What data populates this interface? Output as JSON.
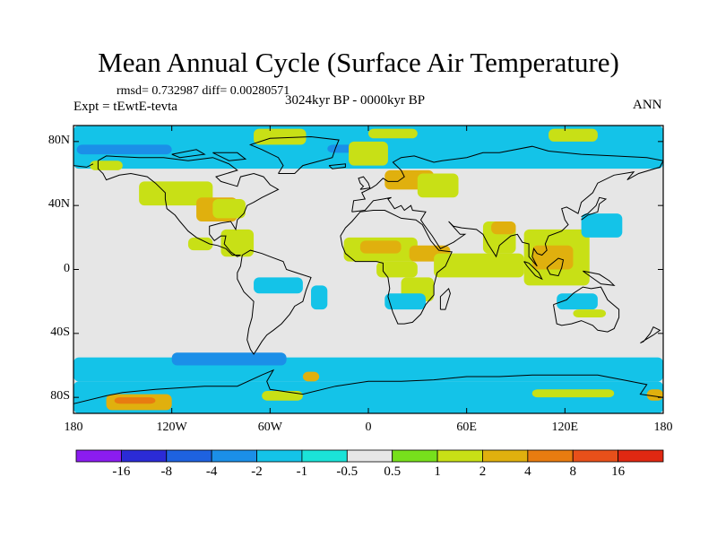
{
  "figure": {
    "title": "Mean Annual Cycle (Surface Air Temperature)",
    "stats": "rmsd= 0.732987 diff= 0.00280571",
    "experiment": "Expt = tEwtE-tevta",
    "period": "3024kyr BP - 0000kyr BP",
    "season": "ANN"
  },
  "axes": {
    "lat_ticks": [
      "80N",
      "40N",
      "0",
      "40S",
      "80S"
    ],
    "lon_ticks": [
      "180",
      "120W",
      "60W",
      "0",
      "60E",
      "120E",
      "180"
    ]
  },
  "colorbar": {
    "labels": [
      "-16",
      "-8",
      "-4",
      "-2",
      "-1",
      "-0.5",
      "0.5",
      "1",
      "2",
      "4",
      "8",
      "16"
    ],
    "colors": [
      "#8b1cf0",
      "#2b2bd6",
      "#1e62e0",
      "#1b8fe8",
      "#14c3e8",
      "#1be3d8",
      "#e6e6e6",
      "#77e01c",
      "#c8e016",
      "#e0b00e",
      "#e87c10",
      "#e8501a",
      "#e02812"
    ]
  },
  "chart_data": {
    "type": "heatmap",
    "title": "Mean Annual Cycle (Surface Air Temperature)",
    "subtitle": "3024kyr BP - 0000kyr BP",
    "variable": "Surface Air Temperature anomaly",
    "season": "ANN",
    "rmsd": 0.732987,
    "diff": 0.00280571,
    "x_range": [
      -180,
      180
    ],
    "y_range": [
      -90,
      90
    ],
    "xlabel": "",
    "ylabel": "",
    "contour_levels": [
      -16,
      -8,
      -4,
      -2,
      -1,
      -0.5,
      0.5,
      1,
      2,
      4,
      8,
      16
    ],
    "regions": [
      {
        "lon": [
          -180,
          180
        ],
        "lat": [
          63,
          90
        ],
        "value": -1.5
      },
      {
        "lon": [
          -178,
          -120
        ],
        "lat": [
          72,
          78
        ],
        "value": -3
      },
      {
        "lon": [
          -25,
          -5
        ],
        "lat": [
          73,
          78
        ],
        "value": -3
      },
      {
        "lon": [
          -12,
          12
        ],
        "lat": [
          65,
          80
        ],
        "value": 1.5
      },
      {
        "lon": [
          0,
          30
        ],
        "lat": [
          82,
          88
        ],
        "value": 1.5
      },
      {
        "lon": [
          -70,
          -38
        ],
        "lat": [
          78,
          88
        ],
        "value": 1.5
      },
      {
        "lon": [
          110,
          140
        ],
        "lat": [
          80,
          88
        ],
        "value": 1.5
      },
      {
        "lon": [
          -170,
          -150
        ],
        "lat": [
          62,
          68
        ],
        "value": 1.5
      },
      {
        "lon": [
          -140,
          -95
        ],
        "lat": [
          40,
          55
        ],
        "value": 1.5
      },
      {
        "lon": [
          -105,
          -80
        ],
        "lat": [
          30,
          45
        ],
        "value": 3
      },
      {
        "lon": [
          -95,
          -75
        ],
        "lat": [
          32,
          44
        ],
        "value": 1.5
      },
      {
        "lon": [
          -90,
          -70
        ],
        "lat": [
          8,
          25
        ],
        "value": 1.5
      },
      {
        "lon": [
          -110,
          -95
        ],
        "lat": [
          12,
          20
        ],
        "value": 1.5
      },
      {
        "lon": [
          -70,
          -40
        ],
        "lat": [
          -15,
          -5
        ],
        "value": -1.5
      },
      {
        "lon": [
          -35,
          -25
        ],
        "lat": [
          -25,
          -10
        ],
        "value": -1.5
      },
      {
        "lon": [
          10,
          40
        ],
        "lat": [
          50,
          62
        ],
        "value": 3
      },
      {
        "lon": [
          30,
          55
        ],
        "lat": [
          45,
          60
        ],
        "value": 1.5
      },
      {
        "lon": [
          -15,
          30
        ],
        "lat": [
          5,
          20
        ],
        "value": 1.5
      },
      {
        "lon": [
          -5,
          20
        ],
        "lat": [
          10,
          18
        ],
        "value": 3
      },
      {
        "lon": [
          5,
          30
        ],
        "lat": [
          -5,
          5
        ],
        "value": 1.5
      },
      {
        "lon": [
          20,
          40
        ],
        "lat": [
          -20,
          -5
        ],
        "value": 1.5
      },
      {
        "lon": [
          25,
          50
        ],
        "lat": [
          5,
          15
        ],
        "value": 3
      },
      {
        "lon": [
          10,
          35
        ],
        "lat": [
          -25,
          -15
        ],
        "value": -1.5
      },
      {
        "lon": [
          40,
          95
        ],
        "lat": [
          -5,
          10
        ],
        "value": 1.5
      },
      {
        "lon": [
          70,
          90
        ],
        "lat": [
          10,
          30
        ],
        "value": 1.5
      },
      {
        "lon": [
          75,
          90
        ],
        "lat": [
          22,
          30
        ],
        "value": 3
      },
      {
        "lon": [
          95,
          135
        ],
        "lat": [
          -10,
          25
        ],
        "value": 1.5
      },
      {
        "lon": [
          100,
          125
        ],
        "lat": [
          0,
          15
        ],
        "value": 3
      },
      {
        "lon": [
          130,
          155
        ],
        "lat": [
          20,
          35
        ],
        "value": -1.5
      },
      {
        "lon": [
          115,
          140
        ],
        "lat": [
          -25,
          -15
        ],
        "value": -1.5
      },
      {
        "lon": [
          125,
          145
        ],
        "lat": [
          -30,
          -25
        ],
        "value": 1.5
      },
      {
        "lon": [
          -180,
          180
        ],
        "lat": [
          -70,
          -55
        ],
        "value": -1.5
      },
      {
        "lon": [
          -120,
          -50
        ],
        "lat": [
          -60,
          -52
        ],
        "value": -3
      },
      {
        "lon": [
          -180,
          180
        ],
        "lat": [
          -90,
          -70
        ],
        "value": -1.5
      },
      {
        "lon": [
          -160,
          -120
        ],
        "lat": [
          -88,
          -78
        ],
        "value": 3
      },
      {
        "lon": [
          -155,
          -130
        ],
        "lat": [
          -84,
          -80
        ],
        "value": 6
      },
      {
        "lon": [
          -65,
          -40
        ],
        "lat": [
          -82,
          -76
        ],
        "value": 1.5
      },
      {
        "lon": [
          -40,
          -30
        ],
        "lat": [
          -70,
          -64
        ],
        "value": 3
      },
      {
        "lon": [
          100,
          150
        ],
        "lat": [
          -80,
          -75
        ],
        "value": 1.5
      },
      {
        "lon": [
          170,
          180
        ],
        "lat": [
          -82,
          -75
        ],
        "value": 3
      }
    ]
  }
}
